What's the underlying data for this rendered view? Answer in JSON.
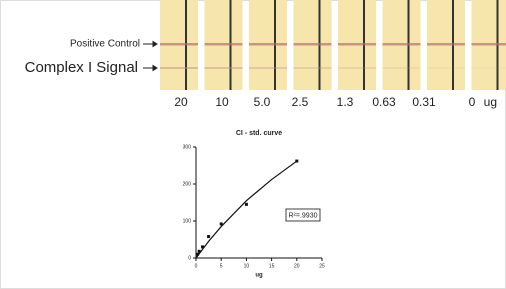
{
  "strip": {
    "labels": [
      "Positive Control",
      "Complex I Signal"
    ],
    "concentrations": [
      "20",
      "10",
      "5.0",
      "2.5",
      "1.3",
      "0.63",
      "0.31",
      "0"
    ],
    "unit": "ug"
  },
  "chart_data": {
    "type": "scatter",
    "title": "CI - std. curve",
    "x_label": "ug",
    "series": [
      {
        "type": "scatter",
        "color": "#111",
        "x": [
          0.31,
          0.63,
          1.3,
          2.5,
          5,
          10,
          20
        ],
        "values": [
          10,
          18,
          30,
          58,
          92,
          145,
          262
        ]
      },
      {
        "type": "line",
        "color": "#111",
        "x": [
          0,
          2.5,
          5,
          10,
          15,
          20
        ],
        "values": [
          0,
          45,
          85,
          155,
          212,
          262
        ]
      }
    ],
    "annotation": "R²=.9930",
    "xlim": [
      0,
      25
    ],
    "xticks": [
      0,
      5,
      10,
      15,
      20,
      25
    ],
    "ylim": [
      0,
      300
    ],
    "yticks": [
      0,
      100,
      200,
      300
    ]
  }
}
